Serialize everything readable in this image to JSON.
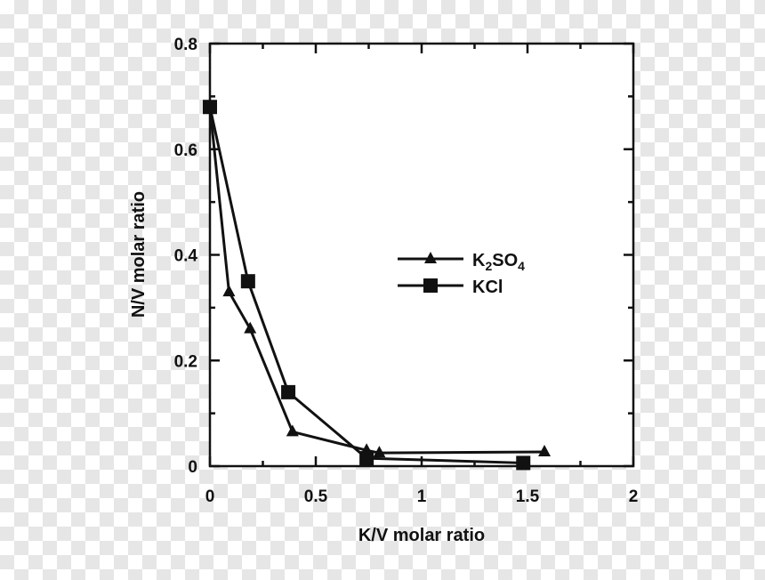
{
  "chart_data": {
    "type": "line",
    "xlabel": "K/V molar ratio",
    "ylabel": "N/V molar ratio",
    "xlim": [
      0,
      2
    ],
    "ylim": [
      0,
      0.8
    ],
    "xticks": [
      0,
      0.5,
      1,
      1.5,
      2
    ],
    "xtick_labels": [
      "0",
      "0.5",
      "1",
      "1.5",
      "2"
    ],
    "yticks": [
      0,
      0.2,
      0.4,
      0.6,
      0.8
    ],
    "ytick_labels": [
      "0",
      "0.2",
      "0.4",
      "0.6",
      "0.8"
    ],
    "grid": false,
    "legend_position": "center-right",
    "series": [
      {
        "name": "K2SO4",
        "legend_parts": [
          "K",
          "2",
          "SO",
          "4"
        ],
        "marker": "triangle",
        "color": "#111111",
        "x": [
          0,
          0.09,
          0.19,
          0.39,
          0.74,
          0.8,
          1.58
        ],
        "y": [
          0.68,
          0.33,
          0.26,
          0.065,
          0.03,
          0.025,
          0.027
        ]
      },
      {
        "name": "KCl",
        "legend_parts": [
          "KCl"
        ],
        "marker": "square",
        "color": "#111111",
        "x": [
          0,
          0.18,
          0.37,
          0.74,
          1.48
        ],
        "y": [
          0.68,
          0.35,
          0.14,
          0.015,
          0.006
        ]
      }
    ]
  }
}
